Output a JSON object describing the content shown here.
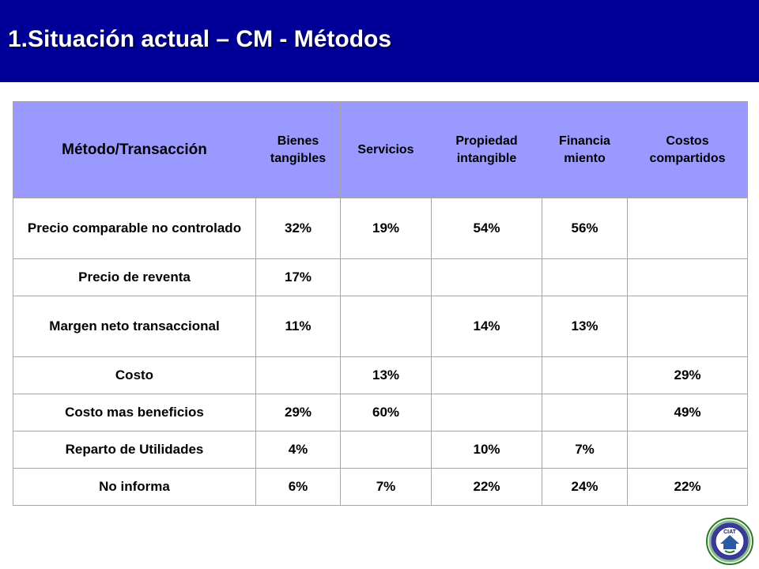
{
  "slide": {
    "title": "1.Situación actual – CM - Métodos"
  },
  "table": {
    "columns": [
      "Método/Transacción",
      "Bienes tangibles",
      "Servicios",
      "Propiedad intangible",
      "Financia miento",
      "Costos compartidos"
    ],
    "rows": [
      {
        "method": "Precio comparable no controlado",
        "cells": [
          "32%",
          "19%",
          "54%",
          "56%",
          ""
        ]
      },
      {
        "method": "Precio de reventa",
        "cells": [
          "17%",
          "",
          "",
          "",
          ""
        ]
      },
      {
        "method": "Margen neto transaccional",
        "cells": [
          "11%",
          "",
          "14%",
          "13%",
          ""
        ]
      },
      {
        "method": "Costo",
        "cells": [
          "",
          "13%",
          "",
          "",
          "29%"
        ]
      },
      {
        "method": "Costo mas beneficios",
        "cells": [
          "29%",
          "60%",
          "",
          "",
          "49%"
        ]
      },
      {
        "method": "Reparto de Utilidades",
        "cells": [
          "4%",
          "",
          "10%",
          "7%",
          ""
        ]
      },
      {
        "method": "No informa",
        "cells": [
          "6%",
          "7%",
          "22%",
          "24%",
          "22%"
        ]
      }
    ]
  },
  "colors": {
    "header_bar": "#000099",
    "table_header": "#9999ff",
    "grid_line": "#a6a6a6"
  },
  "logo": {
    "icon": "ciat-seal-icon",
    "text": "CIAT"
  }
}
